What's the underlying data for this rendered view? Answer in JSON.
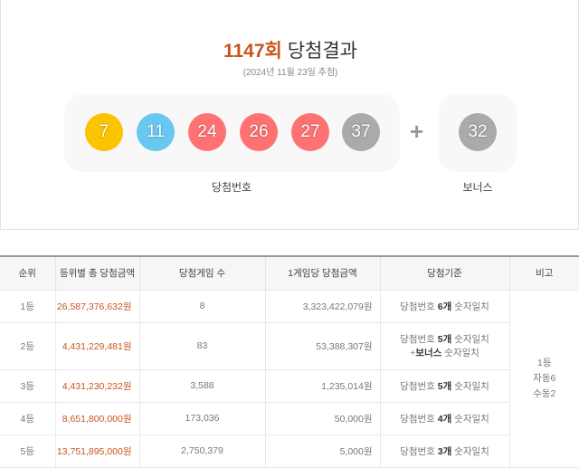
{
  "header": {
    "round": "1147회",
    "title": "당첨결과",
    "date": "(2024년 11월 23일 추첨)"
  },
  "numbers": [
    {
      "n": "7",
      "color": "#fbc400"
    },
    {
      "n": "11",
      "color": "#69c8f2"
    },
    {
      "n": "24",
      "color": "#ff7272"
    },
    {
      "n": "26",
      "color": "#ff7272"
    },
    {
      "n": "27",
      "color": "#ff7272"
    },
    {
      "n": "37",
      "color": "#aaaaaa"
    }
  ],
  "bonus": {
    "n": "32",
    "color": "#aaaaaa"
  },
  "plus": "+",
  "labels": {
    "main": "당첨번호",
    "bonus": "보너스"
  },
  "table": {
    "headers": [
      "순위",
      "등위별 총 당첨금액",
      "당첨게임 수",
      "1게임당 당첨금액",
      "당첨기준",
      "비고"
    ],
    "rows": [
      {
        "rank": "1등",
        "total": "26,587,376,632원",
        "games": "8",
        "per": "3,323,422,079원",
        "c1": "당첨번호 ",
        "b": "6개",
        "c2": " 숫자일치"
      },
      {
        "rank": "2등",
        "total": "4,431,229,481원",
        "games": "83",
        "per": "53,388,307원",
        "c1": "당첨번호 ",
        "b": "5개",
        "c2": " 숫자일치",
        "c3": "+",
        "b2": "보너스",
        "c4": " 숫자일치"
      },
      {
        "rank": "3등",
        "total": "4,431,230,232원",
        "games": "3,588",
        "per": "1,235,014원",
        "c1": "당첨번호 ",
        "b": "5개",
        "c2": " 숫자일치"
      },
      {
        "rank": "4등",
        "total": "8,651,800,000원",
        "games": "173,036",
        "per": "50,000원",
        "c1": "당첨번호 ",
        "b": "4개",
        "c2": " 숫자일치"
      },
      {
        "rank": "5등",
        "total": "13,751,895,000원",
        "games": "2,750,379",
        "per": "5,000원",
        "c1": "당첨번호 ",
        "b": "3개",
        "c2": " 숫자일치"
      }
    ],
    "note": [
      "1등",
      "자동6",
      "수동2"
    ]
  }
}
